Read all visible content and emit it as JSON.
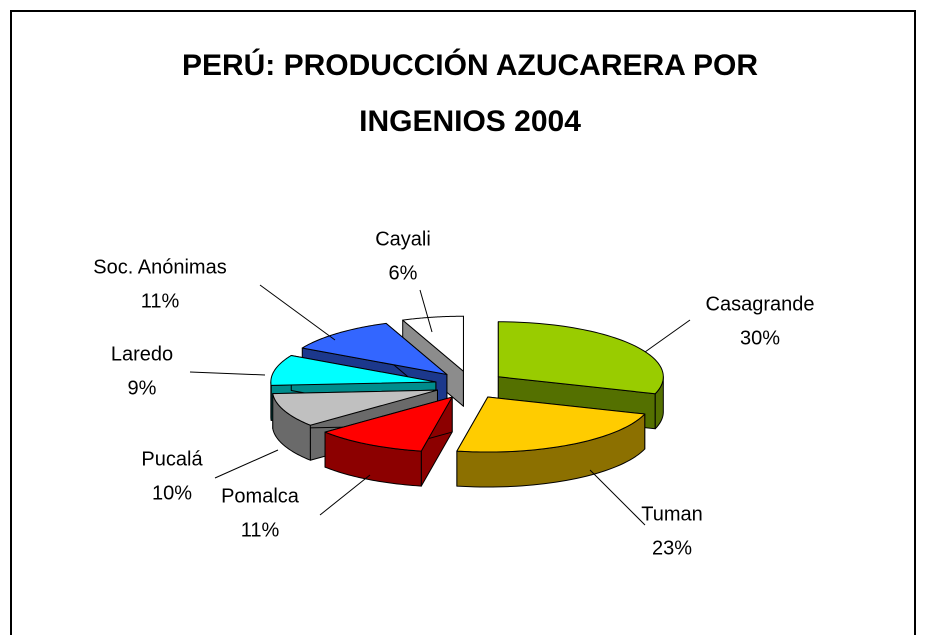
{
  "chart_data": {
    "type": "pie",
    "title": "PERÚ: PRODUCCIÓN AZUCARERA POR INGENIOS 2004",
    "categories": [
      "Casagrande",
      "Tuman",
      "Pomalca",
      "Pucalá",
      "Laredo",
      "Soc. Anónimas",
      "Cayali"
    ],
    "values": [
      30,
      23,
      11,
      10,
      9,
      11,
      6
    ],
    "value_labels": [
      "30%",
      "23%",
      "11%",
      "10%",
      "9%",
      "11%",
      "6%"
    ],
    "colors": [
      "#99cc00",
      "#ffcc00",
      "#ff0000",
      "#c0c0c0",
      "#00ffff",
      "#3366ff",
      "#ffffff"
    ]
  }
}
